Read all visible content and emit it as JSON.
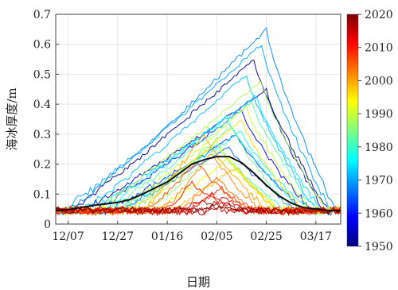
{
  "chart_data": {
    "type": "line",
    "xlabel": "日期",
    "ylabel": "海冰厚度/m",
    "ylim": [
      0,
      0.7
    ],
    "yticks": [
      "0",
      "0.1",
      "0.2",
      "0.3",
      "0.4",
      "0.5",
      "0.6",
      "0.7"
    ],
    "x_dates": [
      "12/07",
      "12/27",
      "01/16",
      "02/05",
      "02/25",
      "03/17"
    ],
    "x_range_days": [
      -5,
      110
    ],
    "colorbar": {
      "label_values": [
        "1950",
        "1960",
        "1970",
        "1980",
        "1990",
        "2000",
        "2010",
        "2020"
      ],
      "range": [
        1950,
        2020
      ],
      "colormap": "jet"
    },
    "colors": {
      "mean_line": "#111111",
      "grid": "#e6e6e6",
      "axis": "#444444"
    },
    "mean_series": {
      "x": [
        -5,
        0,
        5,
        10,
        15,
        20,
        25,
        30,
        35,
        40,
        45,
        50,
        55,
        60,
        65,
        70,
        75,
        80,
        85,
        90,
        95,
        100,
        105,
        110
      ],
      "y": [
        0.045,
        0.048,
        0.055,
        0.062,
        0.067,
        0.072,
        0.082,
        0.1,
        0.12,
        0.14,
        0.17,
        0.2,
        0.215,
        0.225,
        0.225,
        0.205,
        0.17,
        0.13,
        0.095,
        0.07,
        0.055,
        0.05,
        0.045,
        0.045
      ]
    },
    "series": [
      {
        "year": 1951,
        "start": 0,
        "peak_x": 75,
        "peak": 0.55,
        "end": 105
      },
      {
        "year": 1955,
        "start": 5,
        "peak_x": 80,
        "peak": 0.45,
        "end": 103
      },
      {
        "year": 1958,
        "start": 10,
        "peak_x": 70,
        "peak": 0.38,
        "end": 98
      },
      {
        "year": 1962,
        "start": 15,
        "peak_x": 68,
        "peak": 0.3,
        "end": 95
      },
      {
        "year": 1965,
        "start": 20,
        "peak_x": 65,
        "peak": 0.26,
        "end": 92
      },
      {
        "year": 1968,
        "start": 0,
        "peak_x": 80,
        "peak": 0.65,
        "end": 108
      },
      {
        "year": 1970,
        "start": -3,
        "peak_x": 78,
        "peak": 0.6,
        "end": 106
      },
      {
        "year": 1972,
        "start": 5,
        "peak_x": 72,
        "peak": 0.5,
        "end": 100
      },
      {
        "year": 1974,
        "start": 8,
        "peak_x": 76,
        "peak": 0.43,
        "end": 102
      },
      {
        "year": 1976,
        "start": 12,
        "peak_x": 64,
        "peak": 0.36,
        "end": 94
      },
      {
        "year": 1978,
        "start": 18,
        "peak_x": 70,
        "peak": 0.31,
        "end": 97
      },
      {
        "year": 1980,
        "start": 22,
        "peak_x": 60,
        "peak": 0.27,
        "end": 88
      },
      {
        "year": 1982,
        "start": 15,
        "peak_x": 74,
        "peak": 0.41,
        "end": 100
      },
      {
        "year": 1984,
        "start": 25,
        "peak_x": 66,
        "peak": 0.33,
        "end": 90
      },
      {
        "year": 1986,
        "start": 30,
        "peak_x": 62,
        "peak": 0.25,
        "end": 85
      },
      {
        "year": 1988,
        "start": 10,
        "peak_x": 78,
        "peak": 0.48,
        "end": 104
      },
      {
        "year": 1990,
        "start": 20,
        "peak_x": 72,
        "peak": 0.39,
        "end": 98
      },
      {
        "year": 1992,
        "start": 28,
        "peak_x": 60,
        "peak": 0.28,
        "end": 84
      },
      {
        "year": 1994,
        "start": 35,
        "peak_x": 65,
        "peak": 0.22,
        "end": 86
      },
      {
        "year": 1996,
        "start": 24,
        "peak_x": 70,
        "peak": 0.35,
        "end": 94
      },
      {
        "year": 1998,
        "start": 40,
        "peak_x": 68,
        "peak": 0.19,
        "end": 85
      },
      {
        "year": 2000,
        "start": 30,
        "peak_x": 55,
        "peak": 0.3,
        "end": 80
      },
      {
        "year": 2002,
        "start": 38,
        "peak_x": 58,
        "peak": 0.24,
        "end": 78
      },
      {
        "year": 2004,
        "start": 45,
        "peak_x": 60,
        "peak": 0.16,
        "end": 75
      },
      {
        "year": 2006,
        "start": 32,
        "peak_x": 52,
        "peak": 0.21,
        "end": 72
      },
      {
        "year": 2008,
        "start": 48,
        "peak_x": 62,
        "peak": 0.12,
        "end": 76
      },
      {
        "year": 2010,
        "start": 40,
        "peak_x": 50,
        "peak": 0.14,
        "end": 66
      },
      {
        "year": 2012,
        "start": 50,
        "peak_x": 58,
        "peak": 0.1,
        "end": 68
      },
      {
        "year": 2014,
        "start": 55,
        "peak_x": 63,
        "peak": 0.09,
        "end": 72
      },
      {
        "year": 2016,
        "start": 45,
        "peak_x": 54,
        "peak": 0.08,
        "end": 64
      },
      {
        "year": 2018,
        "start": 58,
        "peak_x": 64,
        "peak": 0.07,
        "end": 70
      },
      {
        "year": 2020,
        "start": 52,
        "peak_x": 60,
        "peak": 0.065,
        "end": 68
      }
    ]
  }
}
